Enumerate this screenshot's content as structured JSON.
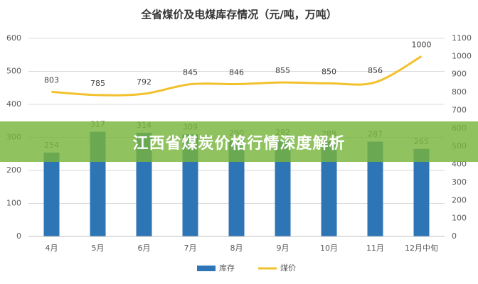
{
  "chart_data": {
    "type": "bar_line",
    "title": "全省煤价及电煤库存情况（元/吨，万吨）",
    "categories": [
      "4月",
      "5月",
      "6月",
      "7月",
      "8月",
      "9月",
      "10月",
      "11月",
      "12月中旬"
    ],
    "series": [
      {
        "name": "库存",
        "type": "bar",
        "color": "#2e75b6",
        "values": [
          254,
          317,
          314,
          309,
          290,
          292,
          288,
          287,
          265
        ]
      },
      {
        "name": "煤价",
        "type": "line",
        "axis": "y2",
        "color": "#f2c12e",
        "values": [
          803,
          785,
          792,
          845,
          846,
          855,
          850,
          856,
          1000
        ]
      }
    ],
    "ylim": [
      0,
      600
    ],
    "yticks": [
      0,
      100,
      200,
      300,
      400,
      500,
      600
    ],
    "y2lim": [
      0,
      1100
    ],
    "y2ticks": [
      0,
      100,
      200,
      300,
      400,
      500,
      600,
      700,
      800,
      900,
      1000,
      1100
    ],
    "grid": true,
    "legend": "bottom"
  },
  "banner": "江西省煤炭价格行情深度解析"
}
